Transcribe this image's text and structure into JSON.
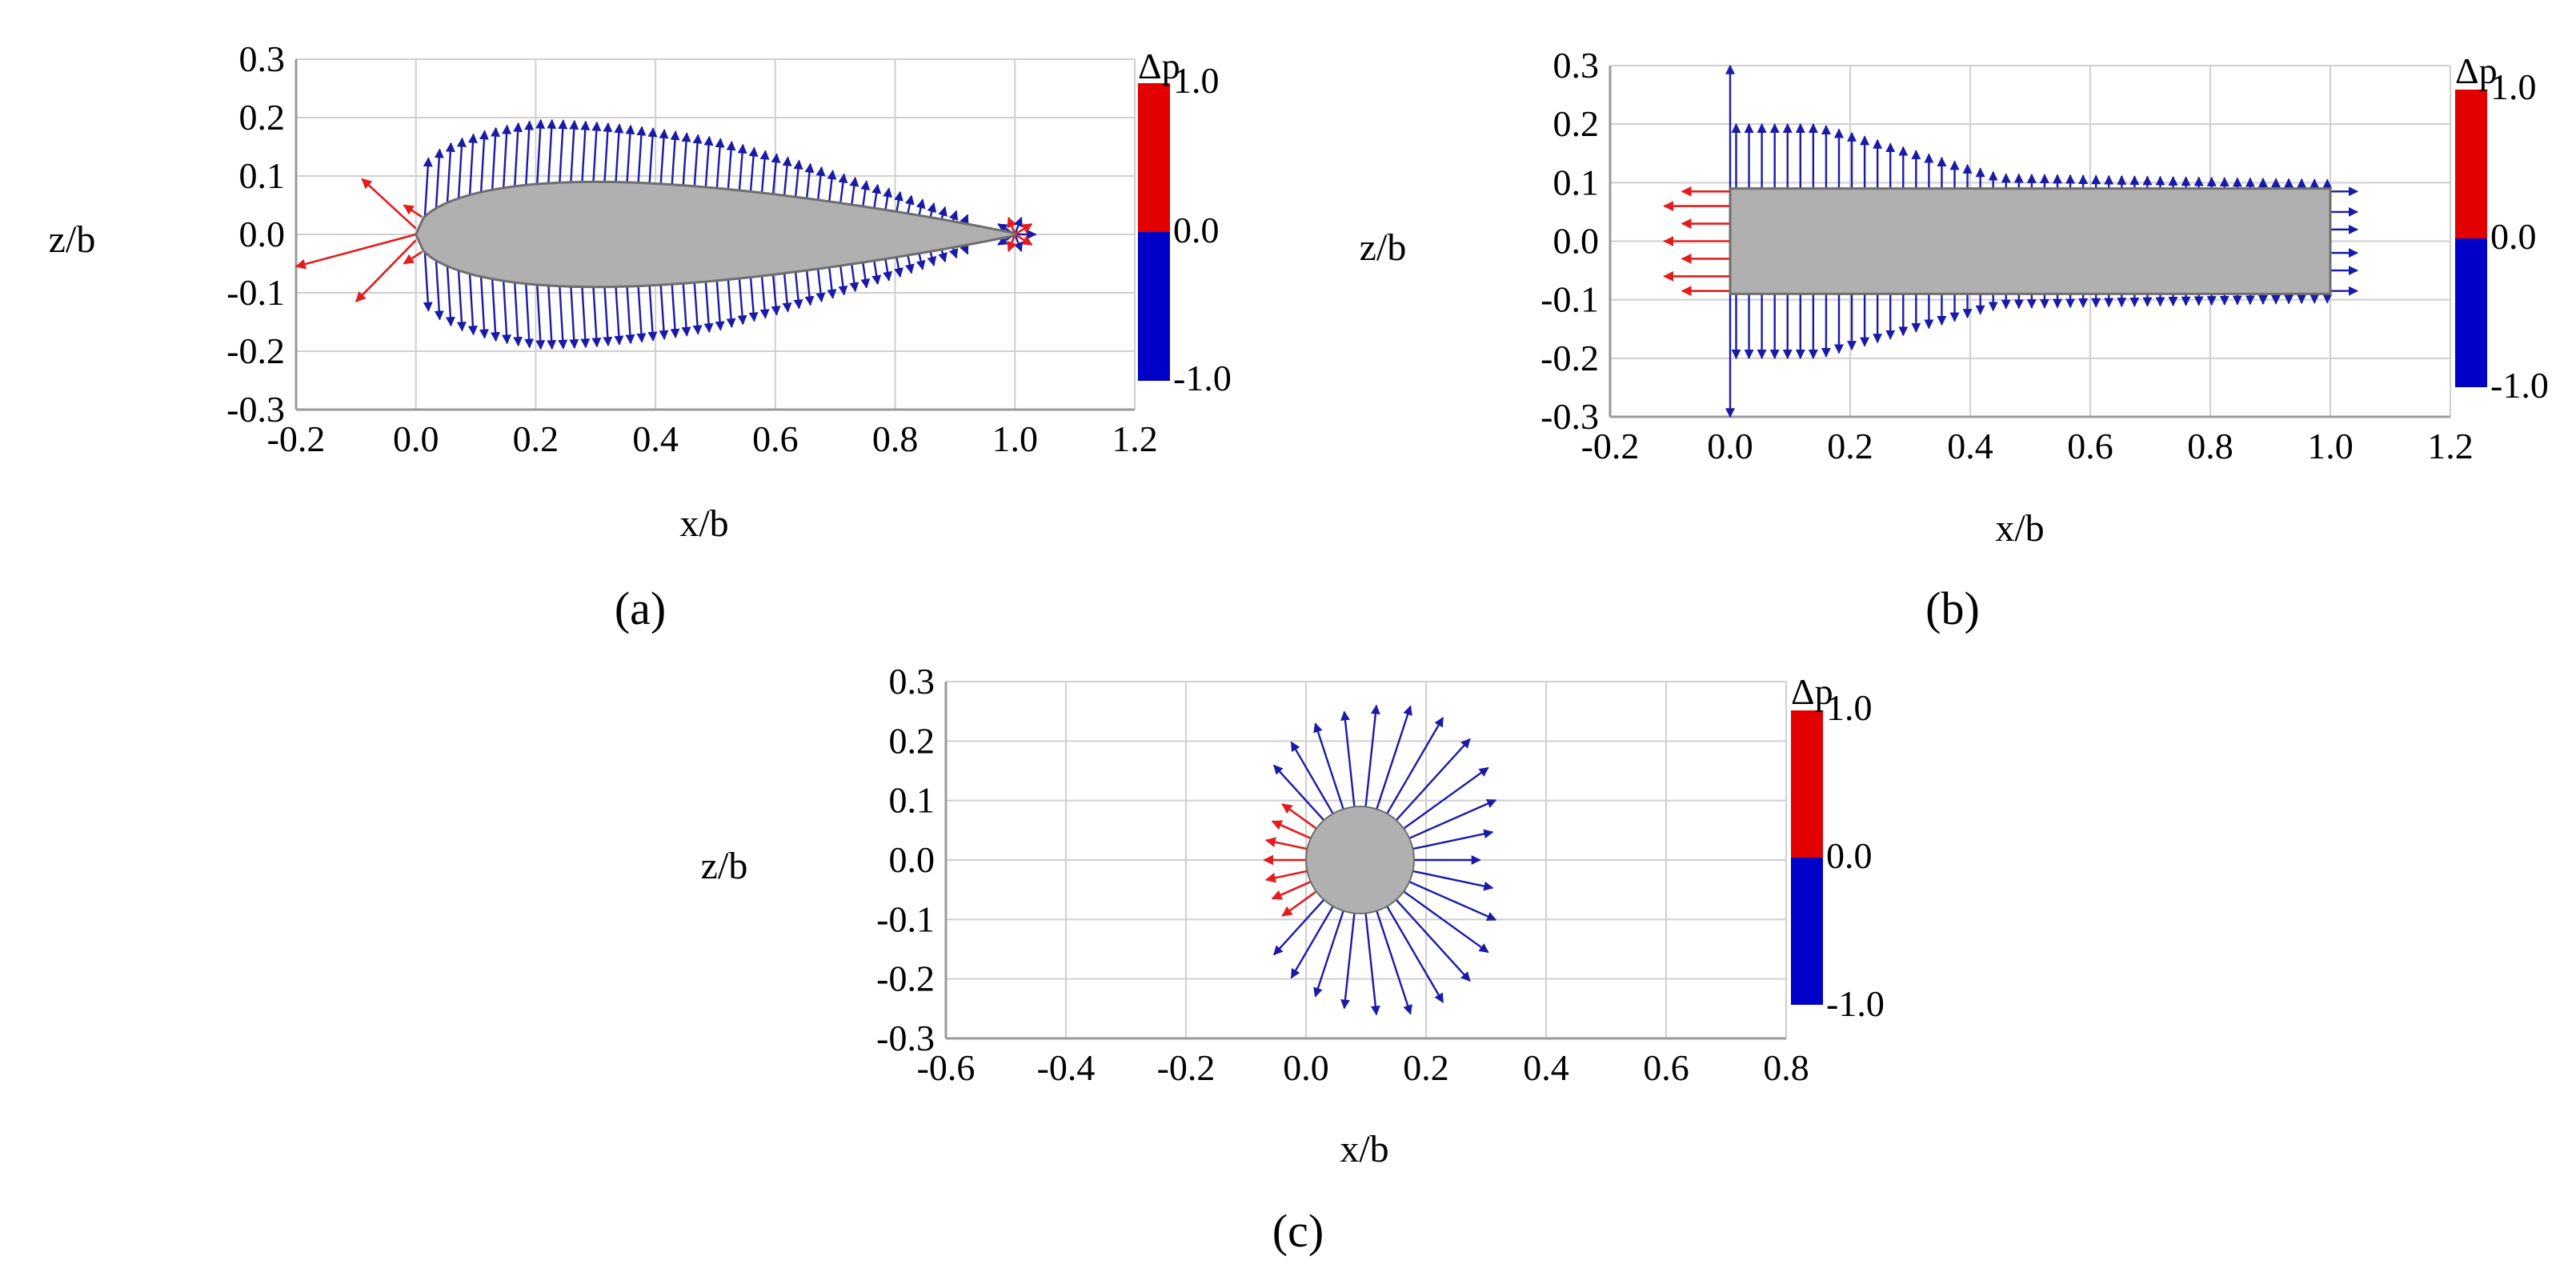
{
  "chart_data": [
    {
      "panel": "a",
      "type": "vector-field",
      "title": "",
      "panel_label": "(a)",
      "xlabel": "x/b",
      "ylabel": "z/b",
      "xlim": [
        -0.2,
        1.2
      ],
      "ylim": [
        -0.3,
        0.3
      ],
      "xticks": [
        -0.2,
        0.0,
        0.2,
        0.4,
        0.6,
        0.8,
        1.0,
        1.2
      ],
      "yticks": [
        0.3,
        0.2,
        0.1,
        0.0,
        -0.1,
        -0.2,
        -0.3
      ],
      "xtick_labels": [
        "-0.2",
        "0.0",
        "0.2",
        "0.4",
        "0.6",
        "0.8",
        "1.0",
        "1.2"
      ],
      "ytick_labels": [
        "0.3",
        "0.2",
        "0.1",
        "0.0",
        "-0.1",
        "-0.2",
        "-0.3"
      ],
      "shape": "airfoil",
      "shape_fill": "#b0b0b0",
      "shape_stroke": "#6e6e6e",
      "colorbar": {
        "title": "Δp",
        "max_label": "1.0",
        "mid_label": "0.0",
        "min_label": "-1.0",
        "max_color": "#e30000",
        "min_color": "#0000c8"
      },
      "stagnation_arrows_dp_positive": [
        {
          "x0": 0.0,
          "z0": 0.0,
          "x1": -0.2,
          "z1": -0.055
        },
        {
          "x0": 0.0,
          "z0": 0.01,
          "x1": -0.09,
          "z1": 0.095
        },
        {
          "x0": 0.0,
          "z0": -0.01,
          "x1": -0.1,
          "z1": -0.115
        }
      ],
      "pressure_profile": [
        {
          "x": 0.02,
          "dz": 0.1
        },
        {
          "x": 0.2,
          "dz": 0.11
        },
        {
          "x": 0.5,
          "dz": 0.085
        },
        {
          "x": 1.0,
          "dz": 0.0
        }
      ]
    },
    {
      "panel": "b",
      "type": "vector-field",
      "title": "",
      "panel_label": "(b)",
      "xlabel": "x/b",
      "ylabel": "z/b",
      "xlim": [
        -0.2,
        1.2
      ],
      "ylim": [
        -0.3,
        0.3
      ],
      "xticks": [
        -0.2,
        0.0,
        0.2,
        0.4,
        0.6,
        0.8,
        1.0,
        1.2
      ],
      "yticks": [
        0.3,
        0.2,
        0.1,
        0.0,
        -0.1,
        -0.2,
        -0.3
      ],
      "xtick_labels": [
        "-0.2",
        "0.0",
        "0.2",
        "0.4",
        "0.6",
        "0.8",
        "1.0",
        "1.2"
      ],
      "ytick_labels": [
        "0.3",
        "0.2",
        "0.1",
        "0.0",
        "-0.1",
        "-0.2",
        "-0.3"
      ],
      "shape": "rectangle",
      "shape_bounds": {
        "x0": 0.0,
        "x1": 1.0,
        "z0": -0.09,
        "z1": 0.09
      },
      "shape_fill": "#b0b0b0",
      "shape_stroke": "#6e6e6e",
      "colorbar": {
        "title": "Δp",
        "max_label": "1.0",
        "mid_label": "0.0",
        "min_label": "-1.0",
        "max_color": "#e30000",
        "min_color": "#0000c8"
      },
      "leading_edge_line": {
        "x": 0.0,
        "z0": -0.3,
        "z1": 0.3
      },
      "pressure_profile": [
        {
          "x": 0.0,
          "dz": 0.11
        },
        {
          "x": 0.15,
          "dz": 0.11
        },
        {
          "x": 0.45,
          "dz": 0.025
        },
        {
          "x": 1.0,
          "dz": 0.015
        }
      ]
    },
    {
      "panel": "c",
      "type": "vector-field",
      "title": "",
      "panel_label": "(c)",
      "xlabel": "x/b",
      "ylabel": "z/b",
      "xlim": [
        -0.6,
        0.8
      ],
      "ylim": [
        -0.3,
        0.3
      ],
      "xticks": [
        -0.6,
        -0.4,
        -0.2,
        0.0,
        0.2,
        0.4,
        0.6,
        0.8
      ],
      "yticks": [
        0.3,
        0.2,
        0.1,
        0.0,
        -0.1,
        -0.2,
        -0.3
      ],
      "xtick_labels": [
        "-0.6",
        "-0.4",
        "-0.2",
        "0.0",
        "0.2",
        "0.4",
        "0.6",
        "0.8"
      ],
      "ytick_labels": [
        "0.3",
        "0.2",
        "0.1",
        "0.0",
        "-0.1",
        "-0.2",
        "-0.3"
      ],
      "shape": "circle",
      "circle": {
        "cx": 0.09,
        "cz": 0.0,
        "r": 0.09
      },
      "shape_fill": "#b0b0b0",
      "shape_stroke": "#6e6e6e",
      "colorbar": {
        "title": "Δp",
        "max_label": "1.0",
        "mid_label": "0.0",
        "min_label": "-1.0",
        "max_color": "#e30000",
        "min_color": "#0000c8"
      }
    }
  ]
}
